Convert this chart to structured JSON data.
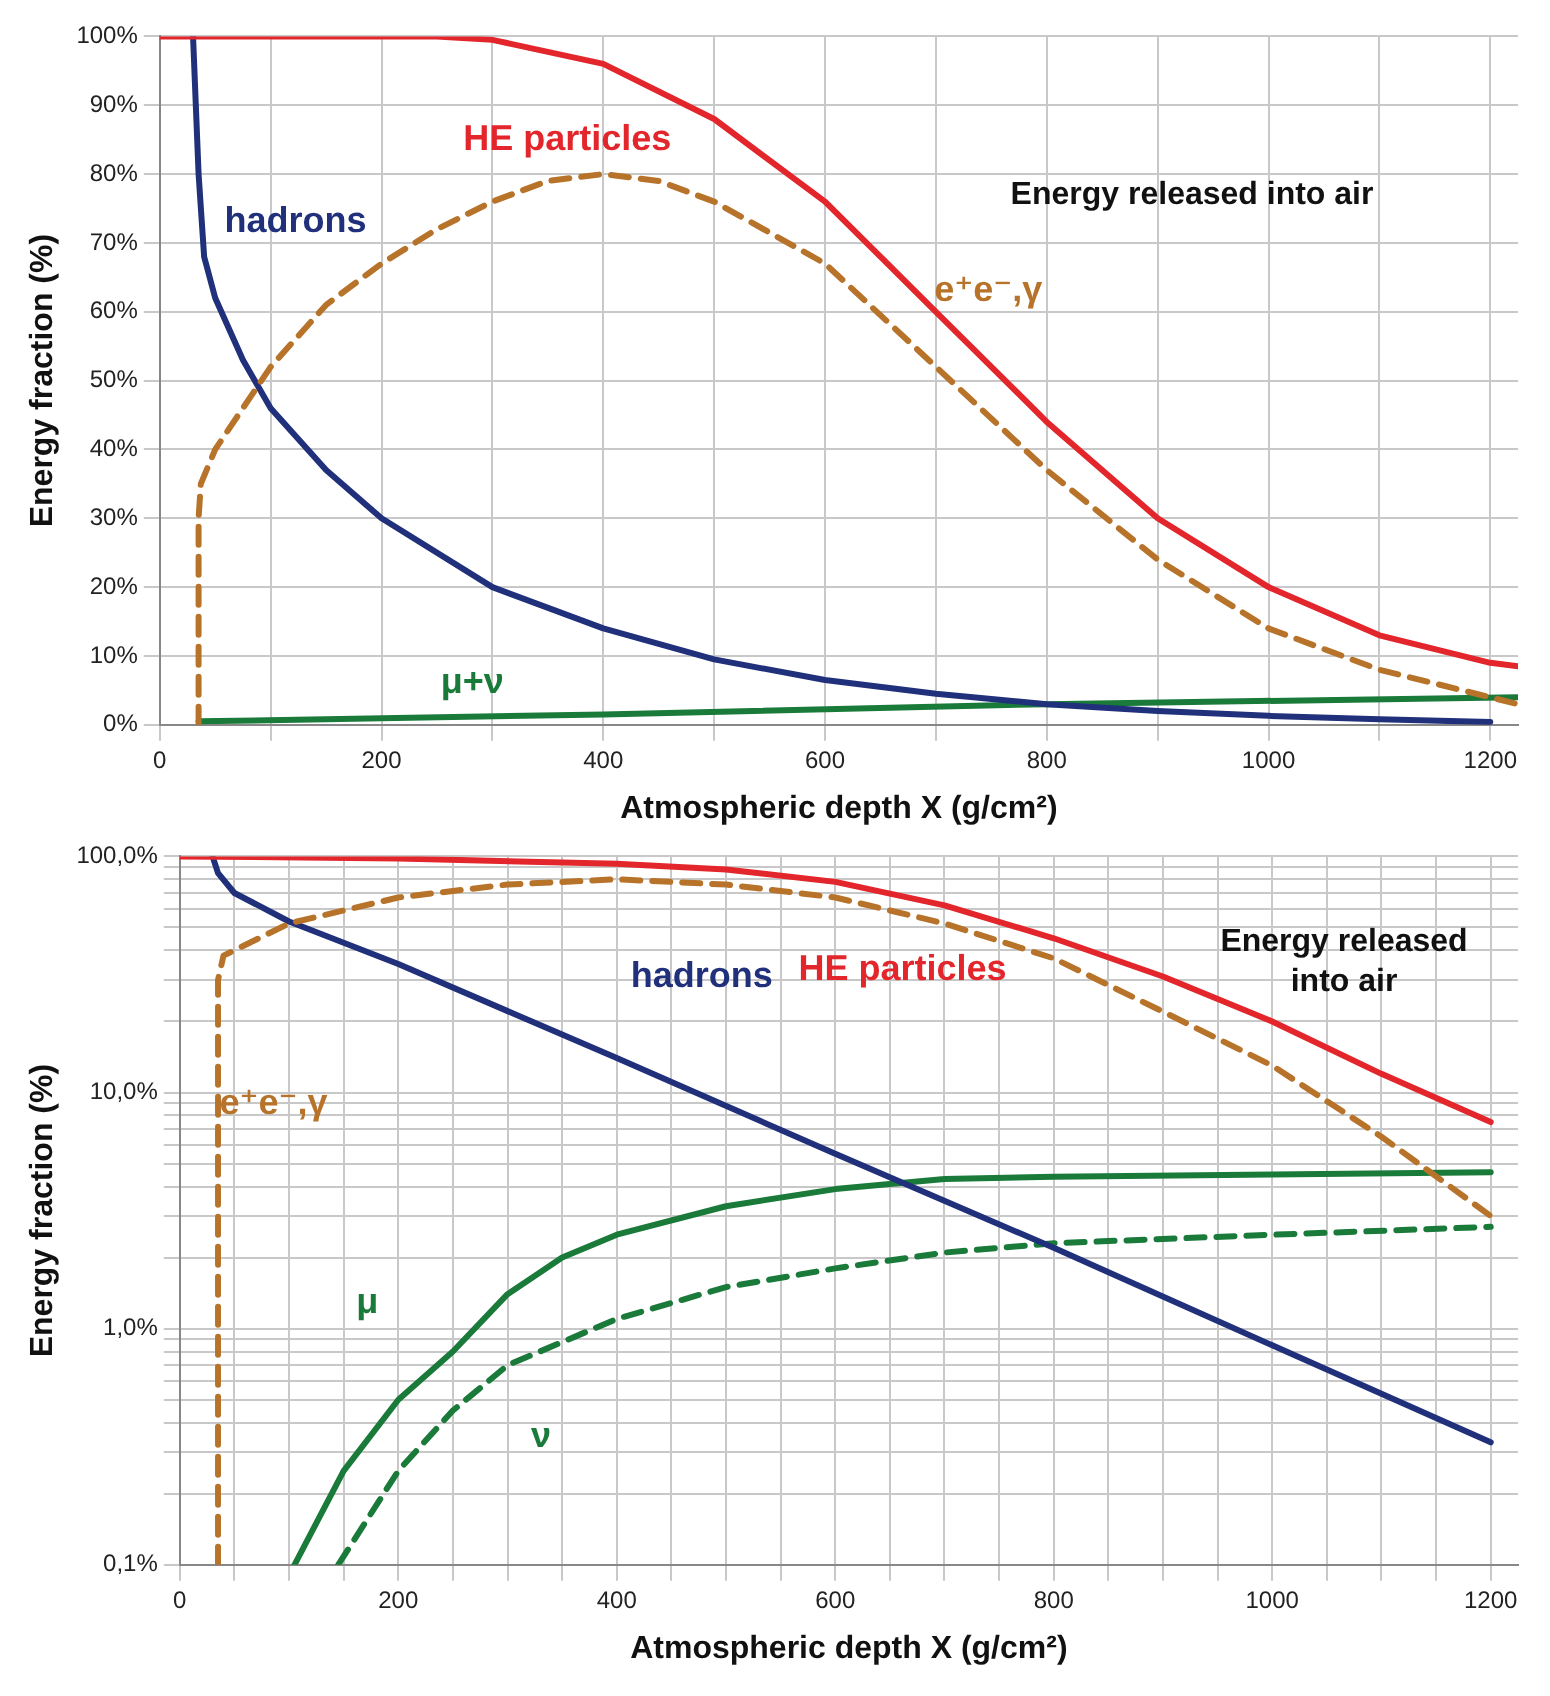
{
  "chart_data": [
    {
      "type": "line",
      "xlabel": "Atmospheric depth X (g/cm²)",
      "ylabel": "Energy fraction (%)",
      "xlim": [
        0,
        1225
      ],
      "xticks": [
        0,
        {
          "value": 100,
          "label": null
        },
        200,
        {
          "value": 300,
          "label": null
        },
        400,
        {
          "value": 500,
          "label": null
        },
        600,
        {
          "value": 700,
          "label": null
        },
        800,
        {
          "value": 900,
          "label": null
        },
        1000,
        {
          "value": 1100,
          "label": null
        },
        1200
      ],
      "ylim": [
        0,
        100
      ],
      "yticks": [
        {
          "value": 0,
          "label": "0%"
        },
        {
          "value": 10,
          "label": "10%"
        },
        {
          "value": 20,
          "label": "20%"
        },
        {
          "value": 30,
          "label": "30%"
        },
        {
          "value": 40,
          "label": "40%"
        },
        {
          "value": 50,
          "label": "50%"
        },
        {
          "value": 60,
          "label": "60%"
        },
        {
          "value": 70,
          "label": "70%"
        },
        {
          "value": 80,
          "label": "80%"
        },
        {
          "value": 90,
          "label": "90%"
        },
        {
          "value": 100,
          "label": "100%"
        }
      ],
      "grid": true,
      "legend": false,
      "marker": "none",
      "annotations": [
        "Energy released into air"
      ],
      "series": [
        {
          "name": "HE particles",
          "color": "#e3262b",
          "line_style": "solid",
          "x": [
            0,
            100,
            250,
            300,
            400,
            500,
            600,
            700,
            800,
            900,
            1000,
            1100,
            1200,
            1225
          ],
          "values": [
            100,
            100,
            100,
            99.5,
            96,
            88,
            76,
            60,
            44,
            30,
            20,
            13,
            9,
            8.5
          ]
        },
        {
          "name": "e⁺e⁻,γ",
          "color": "#b8732a",
          "line_style": "dashed",
          "x": [
            35,
            35,
            37,
            50,
            100,
            150,
            200,
            250,
            300,
            350,
            400,
            450,
            500,
            600,
            700,
            800,
            900,
            1000,
            1100,
            1200,
            1225
          ],
          "values": [
            0,
            30,
            35,
            40,
            52,
            61,
            67,
            72,
            76,
            79,
            80,
            79,
            76,
            67,
            52,
            37,
            24,
            14,
            8,
            4,
            3
          ]
        },
        {
          "name": "hadrons",
          "color": "#20307a",
          "line_style": "solid",
          "x": [
            30,
            35,
            40,
            50,
            75,
            100,
            150,
            200,
            300,
            400,
            500,
            600,
            700,
            800,
            900,
            1000,
            1100,
            1200
          ],
          "values": [
            100,
            80,
            68,
            62,
            53,
            46,
            37,
            30,
            20,
            14,
            9.5,
            6.5,
            4.5,
            3,
            2,
            1.3,
            0.8,
            0.4
          ]
        },
        {
          "name": "μ+ν",
          "color": "#1a7a3a",
          "line_style": "solid",
          "x": [
            35,
            400,
            800,
            1225
          ],
          "values": [
            0.5,
            1.5,
            3,
            4
          ]
        }
      ]
    },
    {
      "type": "line",
      "xlabel": "Atmospheric depth X (g/cm²)",
      "ylabel": "Energy fraction (%)",
      "log": "y",
      "xlim": [
        0,
        1225
      ],
      "xticks": [
        0,
        {
          "value": 50,
          "label": null
        },
        {
          "value": 100,
          "label": null
        },
        {
          "value": 150,
          "label": null
        },
        200,
        {
          "value": 250,
          "label": null
        },
        {
          "value": 300,
          "label": null
        },
        {
          "value": 350,
          "label": null
        },
        400,
        {
          "value": 450,
          "label": null
        },
        {
          "value": 500,
          "label": null
        },
        {
          "value": 550,
          "label": null
        },
        600,
        {
          "value": 650,
          "label": null
        },
        {
          "value": 700,
          "label": null
        },
        {
          "value": 750,
          "label": null
        },
        800,
        {
          "value": 850,
          "label": null
        },
        {
          "value": 900,
          "label": null
        },
        {
          "value": 950,
          "label": null
        },
        1000,
        {
          "value": 1050,
          "label": null
        },
        {
          "value": 1100,
          "label": null
        },
        {
          "value": 1150,
          "label": null
        },
        1200
      ],
      "ylim": [
        0.1,
        100
      ],
      "yticks": [
        {
          "value": 0.1,
          "label": "0,1%"
        },
        {
          "value": 0.2,
          "label": null
        },
        {
          "value": 0.3,
          "label": null
        },
        {
          "value": 0.4,
          "label": null
        },
        {
          "value": 0.5,
          "label": null
        },
        {
          "value": 0.6,
          "label": null
        },
        {
          "value": 0.7,
          "label": null
        },
        {
          "value": 0.8,
          "label": null
        },
        {
          "value": 0.9,
          "label": null
        },
        {
          "value": 1,
          "label": "1,0%"
        },
        {
          "value": 2,
          "label": null
        },
        {
          "value": 3,
          "label": null
        },
        {
          "value": 4,
          "label": null
        },
        {
          "value": 5,
          "label": null
        },
        {
          "value": 6,
          "label": null
        },
        {
          "value": 7,
          "label": null
        },
        {
          "value": 8,
          "label": null
        },
        {
          "value": 9,
          "label": null
        },
        {
          "value": 10,
          "label": "10,0%"
        },
        {
          "value": 20,
          "label": null
        },
        {
          "value": 30,
          "label": null
        },
        {
          "value": 40,
          "label": null
        },
        {
          "value": 50,
          "label": null
        },
        {
          "value": 60,
          "label": null
        },
        {
          "value": 70,
          "label": null
        },
        {
          "value": 80,
          "label": null
        },
        {
          "value": 90,
          "label": null
        },
        {
          "value": 100,
          "label": "100,0%"
        }
      ],
      "grid": true,
      "legend": false,
      "marker": "none",
      "annotations": [
        "Energy released into air"
      ],
      "series": [
        {
          "name": "HE particles",
          "color": "#e3262b",
          "line_style": "solid",
          "x": [
            0,
            200,
            400,
            500,
            600,
            700,
            800,
            900,
            1000,
            1100,
            1200
          ],
          "values": [
            100,
            98,
            93,
            88,
            78,
            62,
            45,
            31,
            20,
            12,
            7.5
          ]
        },
        {
          "name": "e⁺e⁻,γ",
          "color": "#b8732a",
          "line_style": "dashed",
          "x": [
            35,
            35,
            40,
            100,
            200,
            300,
            400,
            500,
            600,
            700,
            800,
            900,
            1000,
            1100,
            1200
          ],
          "values": [
            0.1,
            30,
            38,
            52,
            67,
            76,
            80,
            76,
            67,
            52,
            37,
            22,
            13,
            6.5,
            3
          ]
        },
        {
          "name": "hadrons",
          "color": "#20307a",
          "line_style": "solid",
          "x": [
            30,
            35,
            50,
            100,
            200,
            400,
            600,
            800,
            1000,
            1200
          ],
          "values": [
            100,
            85,
            70,
            53,
            35,
            14,
            5.5,
            2.2,
            0.85,
            0.33
          ]
        },
        {
          "name": "μ",
          "color": "#1a7a3a",
          "line_style": "solid",
          "x": [
            105,
            150,
            200,
            250,
            300,
            350,
            400,
            500,
            600,
            700,
            800,
            1000,
            1200
          ],
          "values": [
            0.1,
            0.25,
            0.5,
            0.8,
            1.4,
            2,
            2.5,
            3.3,
            3.9,
            4.3,
            4.4,
            4.5,
            4.6
          ]
        },
        {
          "name": "ν",
          "color": "#1a7a3a",
          "line_style": "dashed",
          "x": [
            145,
            200,
            250,
            300,
            400,
            500,
            600,
            700,
            800,
            1000,
            1200
          ],
          "values": [
            0.1,
            0.25,
            0.45,
            0.7,
            1.1,
            1.5,
            1.8,
            2.1,
            2.3,
            2.5,
            2.7
          ]
        }
      ]
    }
  ]
}
